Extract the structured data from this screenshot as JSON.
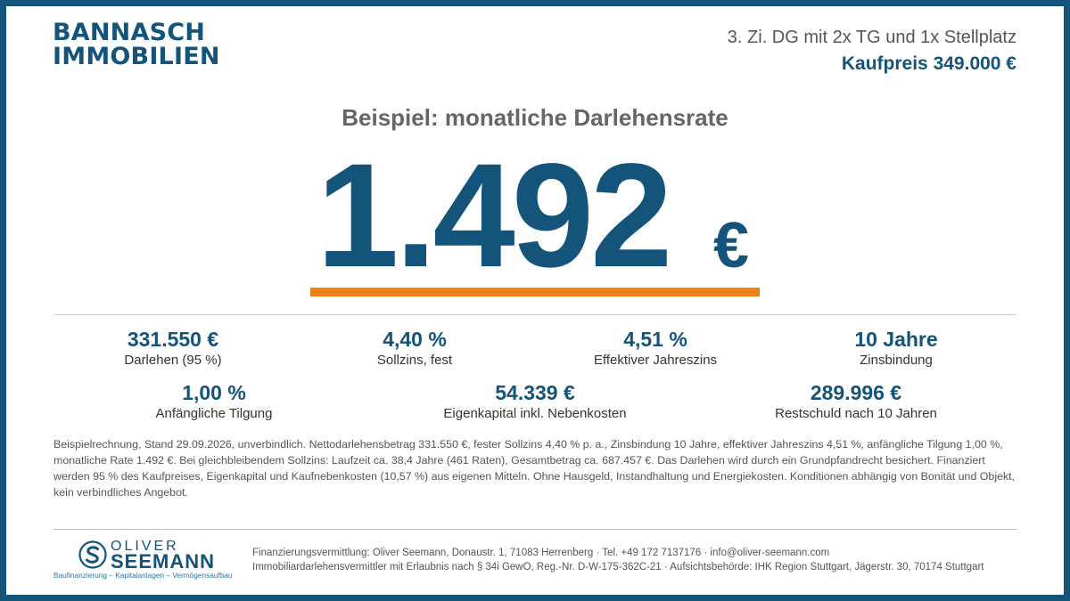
{
  "brand": {
    "line1": "BANNASCH",
    "line2": "IMMOBILIEN"
  },
  "header": {
    "subtitle": "3. Zi. DG mit 2x TG und 1x Stellplatz",
    "price": "Kaufpreis 349.000 €"
  },
  "headline": "Beispiel: monatliche Darlehensrate",
  "rate": {
    "amount": "1.492",
    "currency": "€"
  },
  "stats_row1": [
    {
      "value": "331.550 €",
      "label": "Darlehen (95 %)"
    },
    {
      "value": "4,40 %",
      "label": "Sollzins, fest"
    },
    {
      "value": "4,51 %",
      "label": "Effektiver Jahreszins"
    },
    {
      "value": "10 Jahre",
      "label": "Zinsbindung"
    }
  ],
  "stats_row2": [
    {
      "value": "1,00 %",
      "label": "Anfängliche Tilgung"
    },
    {
      "value": "54.339 €",
      "label": "Eigenkapital inkl. Nebenkosten"
    },
    {
      "value": "289.996 €",
      "label": "Restschuld nach 10 Jahren"
    }
  ],
  "disclaimer": "Beispielrechnung, Stand 29.09.2026, unverbindlich. Nettodarlehensbetrag 331.550 €, fester Sollzins 4,40 % p. a., Zinsbindung 10 Jahre, effektiver Jahreszins 4,51 %, anfängliche Tilgung 1,00 %, monatliche Rate 1.492 €. Bei gleichbleibendem Sollzins: Laufzeit ca. 38,4 Jahre (461 Raten), Gesamtbetrag ca. 687.457 €. Das Darlehen wird durch ein Grundpfandrecht besichert. Finanziert werden 95 % des Kaufpreises, Eigenkapital und Kaufnebenkosten (10,57 %) aus eigenen Mitteln. Ohne Hausgeld, Instandhaltung und Energiekosten. Konditionen abhängig von Bonität und Objekt, kein verbindliches Angebot.",
  "footer": {
    "logo_name1": "OLIVER",
    "logo_name2": "SEEMANN",
    "logo_tagline": "Baufinanzierung – Kapitalanlagen – Vermögensaufbau",
    "line1": "Finanzierungsvermittlung: Oliver Seemann, Donaustr. 1, 71083 Herrenberg · Tel. +49 172 7137176 · info@oliver-seemann.com",
    "line2": "Immobiliardarlehensvermittler mit Erlaubnis nach § 34i GewO, Reg.-Nr. D-W-175-362C-21 · Aufsichtsbehörde: IHK Region Stuttgart, Jägerstr. 30, 70174 Stuttgart"
  },
  "colors": {
    "brand_blue": "#14537a",
    "accent_orange": "#ef7f1a",
    "text_grey": "#555555"
  }
}
